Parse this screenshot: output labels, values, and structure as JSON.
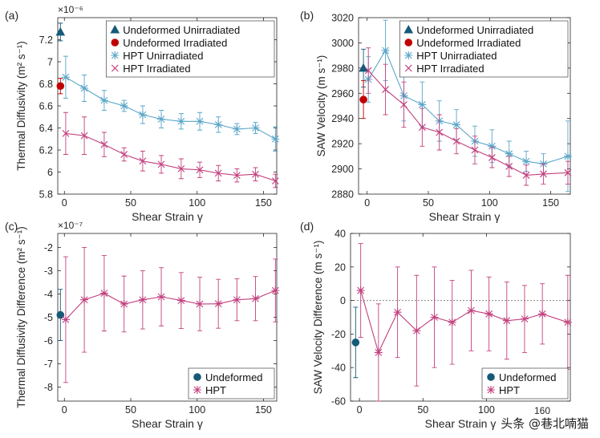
{
  "colors": {
    "undeformed_unirradiated": "#165a79",
    "undeformed_irradiated": "#c00000",
    "hpt_unirradiated": "#5aa6c8",
    "hpt_irradiated": "#c2417f",
    "diff_undeformed": "#165a79",
    "diff_hpt": "#c2417f"
  },
  "watermark": "头条 @巷北喃猫",
  "chart_data": [
    {
      "panel": "(a)",
      "type": "line",
      "xlabel": "Shear Strain γ",
      "ylabel": "Thermal Diffusivity (m² s⁻¹)",
      "exponent": "×10⁻⁶",
      "xlim": [
        -5,
        160
      ],
      "ylim": [
        5.8,
        7.4
      ],
      "xticks": [
        0,
        50,
        100,
        150
      ],
      "yticks": [
        5.8,
        6,
        6.2,
        6.4,
        6.6,
        6.8,
        7,
        7.2
      ],
      "legend_position": "top-right",
      "series": [
        {
          "name": "Undeformed Unirradiated",
          "marker": "triangle",
          "color": "#165a79",
          "x": [
            -3
          ],
          "y": [
            7.27
          ],
          "err": [
            0.08
          ]
        },
        {
          "name": "Undeformed Irradiated",
          "marker": "circle",
          "color": "#c00000",
          "x": [
            -3
          ],
          "y": [
            6.78
          ],
          "err": [
            0.07
          ]
        },
        {
          "name": "HPT Unirradiated",
          "marker": "star",
          "color": "#5aa6c8",
          "line": true,
          "x": [
            1,
            15,
            30,
            45,
            59,
            73,
            88,
            102,
            116,
            130,
            144,
            159
          ],
          "y": [
            6.86,
            6.76,
            6.65,
            6.6,
            6.52,
            6.48,
            6.46,
            6.46,
            6.43,
            6.39,
            6.4,
            6.3
          ],
          "err": [
            0.19,
            0.12,
            0.09,
            0.05,
            0.08,
            0.08,
            0.07,
            0.08,
            0.07,
            0.05,
            0.05,
            0.11
          ]
        },
        {
          "name": "HPT Irradiated",
          "marker": "cross",
          "color": "#c2417f",
          "line": true,
          "x": [
            1,
            15,
            30,
            45,
            59,
            73,
            88,
            102,
            116,
            130,
            144,
            159
          ],
          "y": [
            6.35,
            6.33,
            6.25,
            6.16,
            6.1,
            6.07,
            6.03,
            6.02,
            5.99,
            5.97,
            5.98,
            5.92
          ],
          "err": [
            0.19,
            0.17,
            0.11,
            0.06,
            0.09,
            0.08,
            0.09,
            0.07,
            0.07,
            0.06,
            0.06,
            0.06
          ]
        }
      ]
    },
    {
      "panel": "(b)",
      "type": "line",
      "xlabel": "Shear Strain γ",
      "ylabel": "SAW Velocity (m s⁻¹)",
      "xlim": [
        -7,
        166
      ],
      "ylim": [
        2880,
        3020
      ],
      "xticks": [
        0,
        50,
        100,
        150
      ],
      "yticks": [
        2880,
        2900,
        2920,
        2940,
        2960,
        2980,
        3000,
        3020
      ],
      "legend_position": "top-right",
      "series": [
        {
          "name": "Undeformed Unirradiated",
          "marker": "triangle",
          "color": "#165a79",
          "x": [
            -3
          ],
          "y": [
            2980
          ],
          "err": [
            15
          ]
        },
        {
          "name": "Undeformed Irradiated",
          "marker": "circle",
          "color": "#c00000",
          "x": [
            -3
          ],
          "y": [
            2955
          ],
          "err": [
            15
          ]
        },
        {
          "name": "HPT Unirradiated",
          "marker": "star",
          "color": "#5aa6c8",
          "line": true,
          "x": [
            1,
            15,
            30,
            45,
            59,
            73,
            88,
            102,
            116,
            130,
            144,
            164
          ],
          "y": [
            2971,
            2994,
            2958,
            2951,
            2938,
            2935,
            2922,
            2918,
            2912,
            2906,
            2904,
            2910
          ],
          "err": [
            18,
            24,
            20,
            18,
            16,
            12,
            12,
            13,
            10,
            8,
            8,
            28
          ]
        },
        {
          "name": "HPT Irradiated",
          "marker": "cross",
          "color": "#c2417f",
          "line": true,
          "x": [
            1,
            15,
            30,
            45,
            59,
            73,
            88,
            102,
            116,
            130,
            144,
            164
          ],
          "y": [
            2978,
            2963,
            2951,
            2933,
            2929,
            2922,
            2915,
            2909,
            2902,
            2895,
            2896,
            2897
          ],
          "err": [
            18,
            20,
            18,
            15,
            14,
            10,
            11,
            8,
            8,
            8,
            8,
            9
          ]
        }
      ]
    },
    {
      "panel": "(c)",
      "type": "line",
      "xlabel": "Shear Strain γ",
      "ylabel": "Thermal Diffusivity Difference (m² s⁻¹)",
      "exponent": "×10⁻⁷",
      "xlim": [
        -5,
        160
      ],
      "ylim": [
        -8.6,
        -1.4
      ],
      "xticks": [
        0,
        50,
        100,
        150
      ],
      "yticks": [
        -8,
        -7,
        -6,
        -5,
        -4,
        -3,
        -2
      ],
      "legend_position": "bottom-right",
      "series": [
        {
          "name": "Undeformed",
          "marker": "circle",
          "color": "#165a79",
          "x": [
            -3
          ],
          "y": [
            -4.9
          ],
          "err": [
            1.1
          ]
        },
        {
          "name": "HPT",
          "marker": "star",
          "color": "#c2417f",
          "line": true,
          "x": [
            1,
            15,
            30,
            45,
            59,
            73,
            88,
            102,
            116,
            130,
            144,
            159
          ],
          "y": [
            -5.1,
            -4.25,
            -3.97,
            -4.43,
            -4.25,
            -4.12,
            -4.28,
            -4.43,
            -4.42,
            -4.25,
            -4.2,
            -3.85
          ],
          "err": [
            2.7,
            2.25,
            1.62,
            1.2,
            1.25,
            1.25,
            1.2,
            1.15,
            1.05,
            0.9,
            0.95,
            1.35
          ]
        }
      ]
    },
    {
      "panel": "(d)",
      "type": "line",
      "xlabel": "Shear Strain γ",
      "ylabel": "SAW Velocity Difference (m s⁻¹)",
      "exponent": "160",
      "xlim": [
        -7,
        166
      ],
      "ylim": [
        -60,
        40
      ],
      "xticks": [
        0,
        50,
        100
      ],
      "yticks": [
        -60,
        -40,
        -20,
        0,
        20,
        40
      ],
      "reference_line": 0,
      "legend_position": "bottom-right",
      "series": [
        {
          "name": "Undeformed",
          "marker": "circle",
          "color": "#165a79",
          "x": [
            -3
          ],
          "y": [
            -25
          ],
          "err": [
            21
          ]
        },
        {
          "name": "HPT",
          "marker": "star",
          "color": "#c2417f",
          "line": true,
          "x": [
            1,
            15,
            30,
            45,
            59,
            73,
            88,
            102,
            116,
            130,
            144,
            164
          ],
          "y": [
            6,
            -31,
            -7,
            -18,
            -10,
            -13,
            -6,
            -8,
            -12,
            -11,
            -8,
            -13
          ],
          "err": [
            28,
            29,
            27,
            33,
            30,
            25,
            24,
            22,
            23,
            20,
            18,
            28
          ]
        }
      ]
    }
  ]
}
